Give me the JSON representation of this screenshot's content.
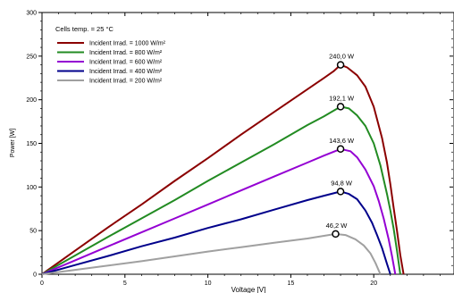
{
  "chart_data": {
    "type": "line",
    "xlabel": "Voltage [V]",
    "ylabel": "Power   [W]",
    "xlim": [
      0,
      25
    ],
    "ylim": [
      0,
      300
    ],
    "xticks": [
      0,
      5,
      10,
      15,
      20,
      25
    ],
    "yticks": [
      0,
      50,
      100,
      150,
      200,
      250,
      300
    ],
    "grid": false,
    "legend_position": "top-left",
    "legend_title": "Cells temp. = 25 °C",
    "series": [
      {
        "name": "Incident Irrad. = 1000 W/m²",
        "color": "#8b0000",
        "x": [
          0,
          2,
          4,
          6,
          8,
          10,
          12,
          14,
          16,
          17,
          17.6,
          18,
          18.4,
          19,
          19.5,
          20,
          20.5,
          20.8,
          21,
          21.2,
          21.4,
          21.6,
          21.8
        ],
        "y": [
          0,
          27,
          54,
          80,
          107,
          133,
          160,
          186,
          212,
          225,
          233,
          240,
          237,
          228,
          215,
          192,
          156,
          128,
          103,
          76,
          50,
          22,
          0
        ],
        "mpp": {
          "x": 18.0,
          "y": 240.0,
          "label": "240,0 W"
        }
      },
      {
        "name": "Incident Irrad. = 800 W/m²",
        "color": "#228b22",
        "x": [
          0,
          2,
          4,
          6,
          8,
          10,
          12,
          14,
          16,
          17,
          18,
          18.5,
          19,
          19.5,
          20,
          20.4,
          20.8,
          21.0,
          21.2,
          21.4,
          21.6
        ],
        "y": [
          0,
          21.5,
          43,
          64,
          85,
          107,
          128,
          149,
          171,
          181,
          192.1,
          190,
          182,
          170,
          150,
          125,
          92,
          73,
          52,
          27,
          0
        ],
        "mpp": {
          "x": 18.0,
          "y": 192.1,
          "label": "192,1 W"
        }
      },
      {
        "name": "Incident Irrad. = 600 W/m²",
        "color": "#9400d3",
        "x": [
          0,
          2,
          4,
          6,
          8,
          10,
          12,
          14,
          16,
          17,
          18,
          18.6,
          19,
          19.5,
          20,
          20.3,
          20.6,
          20.9,
          21.1,
          21.3
        ],
        "y": [
          0,
          16,
          32,
          48,
          64,
          80,
          96,
          112,
          128,
          136,
          143.6,
          141,
          134,
          120,
          101,
          84,
          64,
          40,
          21,
          0
        ],
        "mpp": {
          "x": 18.0,
          "y": 143.6,
          "label": "143,6 W"
        }
      },
      {
        "name": "Incident Irrad. = 400 W/m²",
        "color": "#00008b",
        "x": [
          0,
          2,
          4,
          6,
          8,
          10,
          12,
          14,
          16,
          17,
          18,
          18.5,
          19,
          19.5,
          19.9,
          20.2,
          20.5,
          20.8,
          21.0
        ],
        "y": [
          0,
          10.5,
          21,
          32,
          42,
          53,
          63,
          74,
          85,
          90,
          94.8,
          92,
          86,
          73,
          59,
          45,
          30,
          12,
          0
        ],
        "mpp": {
          "x": 18.0,
          "y": 94.8,
          "label": "94,8 W"
        }
      },
      {
        "name": "Incident Irrad. = 200 W/m²",
        "color": "#a0a0a0",
        "x": [
          0,
          2,
          4,
          6,
          8,
          10,
          12,
          14,
          16,
          17,
          17.7,
          18.3,
          18.9,
          19.4,
          19.8,
          20.1,
          20.4
        ],
        "y": [
          0,
          5,
          10,
          15,
          20.5,
          26,
          31,
          36,
          41,
          44,
          46.2,
          45,
          40,
          33,
          24,
          13,
          0
        ],
        "mpp": {
          "x": 17.7,
          "y": 46.2,
          "label": "46,2 W"
        }
      }
    ]
  }
}
